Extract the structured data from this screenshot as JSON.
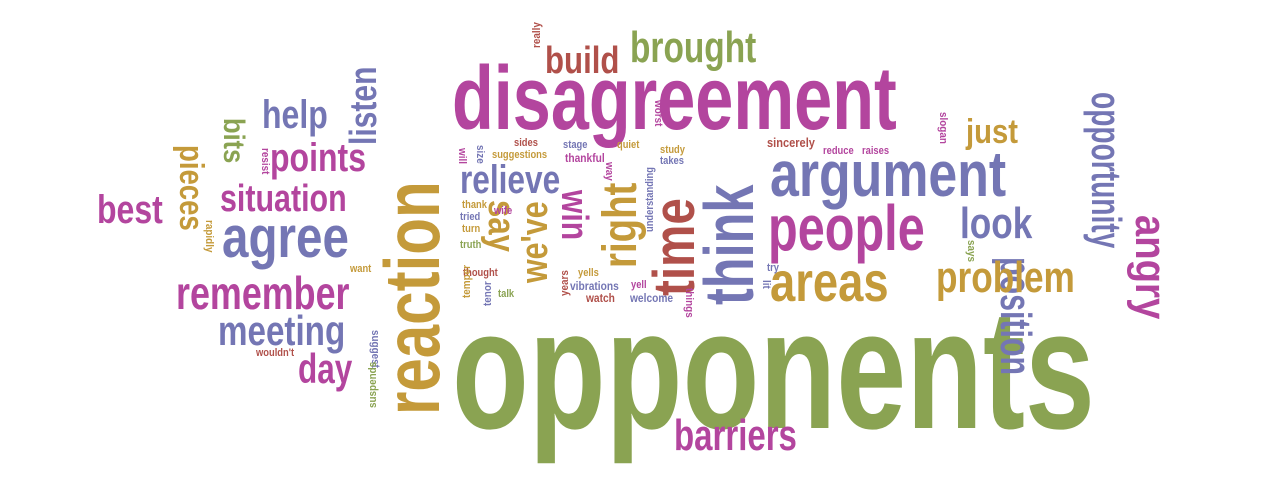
{
  "palette": {
    "green": "#8aa352",
    "gold": "#c49a3a",
    "purple": "#7476b4",
    "magenta": "#b3459e",
    "red": "#b0504a"
  },
  "words": [
    {
      "text": "opponents",
      "color": "green"
    },
    {
      "text": "reaction",
      "color": "gold"
    },
    {
      "text": "disagreement",
      "color": "magenta"
    },
    {
      "text": "think",
      "color": "purple"
    },
    {
      "text": "argument",
      "color": "purple"
    },
    {
      "text": "people",
      "color": "magenta"
    },
    {
      "text": "agree",
      "color": "purple"
    },
    {
      "text": "areas",
      "color": "gold"
    },
    {
      "text": "time",
      "color": "red"
    },
    {
      "text": "remember",
      "color": "magenta"
    },
    {
      "text": "right",
      "color": "gold"
    },
    {
      "text": "barriers",
      "color": "magenta"
    },
    {
      "text": "brought",
      "color": "green"
    },
    {
      "text": "build",
      "color": "red"
    },
    {
      "text": "position",
      "color": "purple"
    },
    {
      "text": "opportunity",
      "color": "purple"
    },
    {
      "text": "angry",
      "color": "magenta"
    },
    {
      "text": "problem",
      "color": "gold"
    },
    {
      "text": "look",
      "color": "purple"
    },
    {
      "text": "just",
      "color": "gold"
    },
    {
      "text": "meeting",
      "color": "purple"
    },
    {
      "text": "situation",
      "color": "magenta"
    },
    {
      "text": "points",
      "color": "magenta"
    },
    {
      "text": "help",
      "color": "purple"
    },
    {
      "text": "listen",
      "color": "purple"
    },
    {
      "text": "relieve",
      "color": "purple"
    },
    {
      "text": "we've",
      "color": "gold"
    },
    {
      "text": "win",
      "color": "magenta"
    },
    {
      "text": "say",
      "color": "gold"
    },
    {
      "text": "best",
      "color": "magenta"
    },
    {
      "text": "pieces",
      "color": "gold"
    },
    {
      "text": "bits",
      "color": "green"
    },
    {
      "text": "day",
      "color": "magenta"
    },
    {
      "text": "really",
      "color": "red"
    },
    {
      "text": "sincerely",
      "color": "red"
    },
    {
      "text": "reduce",
      "color": "magenta"
    },
    {
      "text": "raises",
      "color": "magenta"
    },
    {
      "text": "slogan",
      "color": "magenta"
    },
    {
      "text": "sides",
      "color": "red"
    },
    {
      "text": "suggestions",
      "color": "gold"
    },
    {
      "text": "stage",
      "color": "purple"
    },
    {
      "text": "quiet",
      "color": "gold"
    },
    {
      "text": "thankful",
      "color": "magenta"
    },
    {
      "text": "worst",
      "color": "magenta"
    },
    {
      "text": "study",
      "color": "gold"
    },
    {
      "text": "understanding",
      "color": "purple"
    },
    {
      "text": "takes",
      "color": "purple"
    },
    {
      "text": "way",
      "color": "magenta"
    },
    {
      "text": "size",
      "color": "purple"
    },
    {
      "text": "will",
      "color": "magenta"
    },
    {
      "text": "resist",
      "color": "magenta"
    },
    {
      "text": "thank",
      "color": "gold"
    },
    {
      "text": "tried",
      "color": "purple"
    },
    {
      "text": "wife",
      "color": "magenta"
    },
    {
      "text": "turn",
      "color": "gold"
    },
    {
      "text": "truth",
      "color": "green"
    },
    {
      "text": "thought",
      "color": "red"
    },
    {
      "text": "temper",
      "color": "gold"
    },
    {
      "text": "tenor",
      "color": "purple"
    },
    {
      "text": "talk",
      "color": "green"
    },
    {
      "text": "years",
      "color": "red"
    },
    {
      "text": "yells",
      "color": "gold"
    },
    {
      "text": "vibrations",
      "color": "purple"
    },
    {
      "text": "yell",
      "color": "magenta"
    },
    {
      "text": "watch",
      "color": "red"
    },
    {
      "text": "welcome",
      "color": "purple"
    },
    {
      "text": "things",
      "color": "magenta"
    },
    {
      "text": "try",
      "color": "purple"
    },
    {
      "text": "lit",
      "color": "purple"
    },
    {
      "text": "says",
      "color": "green"
    },
    {
      "text": "rapidly",
      "color": "gold"
    },
    {
      "text": "want",
      "color": "gold"
    },
    {
      "text": "suggest",
      "color": "purple"
    },
    {
      "text": "wouldn't",
      "color": "red"
    },
    {
      "text": "suspends",
      "color": "green"
    }
  ]
}
